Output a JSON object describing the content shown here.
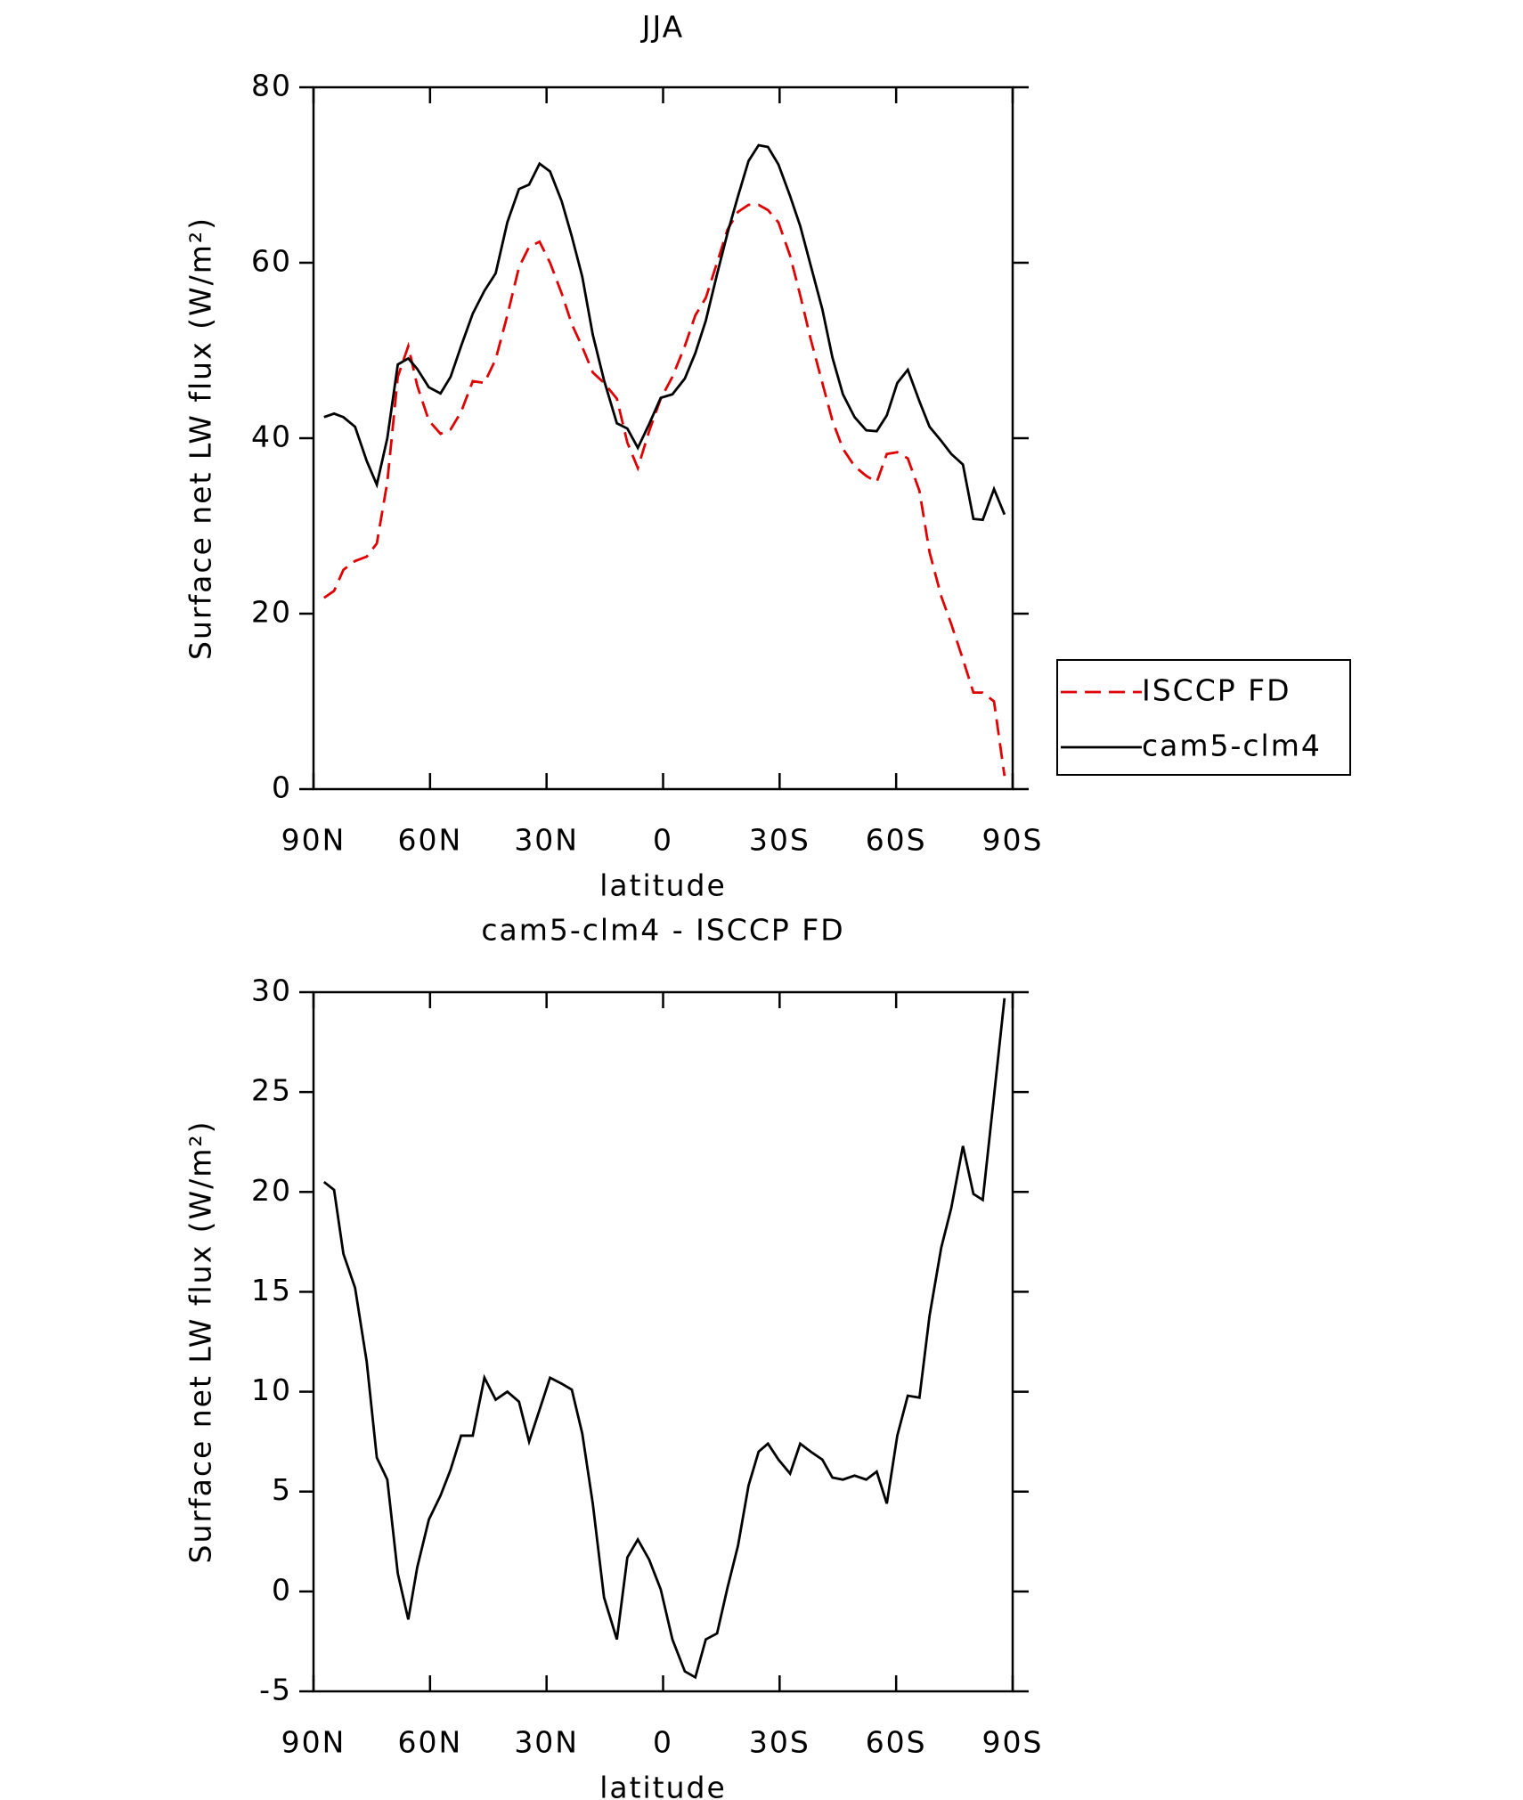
{
  "chart_data": [
    {
      "type": "line",
      "title": "JJA",
      "x_label": "latitude",
      "y_label": "Surface net LW flux (W/m²)",
      "xlim": [
        90,
        -90
      ],
      "xticks": [
        {
          "value": 90,
          "label": "90N"
        },
        {
          "value": 60,
          "label": "60N"
        },
        {
          "value": 30,
          "label": "30N"
        },
        0,
        {
          "value": -30,
          "label": "30S"
        },
        {
          "value": -60,
          "label": "60S"
        },
        {
          "value": -90,
          "label": "90S"
        }
      ],
      "ylim": [
        0,
        80
      ],
      "yticks": [
        0,
        20,
        40,
        60,
        80
      ],
      "legend": "right",
      "x": [
        87.3,
        84.7,
        82.3,
        79.3,
        76.3,
        73.7,
        71.0,
        68.3,
        65.6,
        63.3,
        60.3,
        57.3,
        54.7,
        52.0,
        49.0,
        46.0,
        43.1,
        40.1,
        37.1,
        34.5,
        31.8,
        29.1,
        26.1,
        23.5,
        20.8,
        18.1,
        15.2,
        11.9,
        9.2,
        6.5,
        3.6,
        0.6,
        -2.4,
        -5.6,
        -8.3,
        -11.0,
        -13.9,
        -16.6,
        -19.3,
        -22.0,
        -24.6,
        -27.0,
        -29.7,
        -32.7,
        -35.3,
        -38.0,
        -41.0,
        -43.6,
        -46.3,
        -49.3,
        -52.3,
        -55.0,
        -57.6,
        -60.3,
        -63.0,
        -66.0,
        -68.6,
        -71.6,
        -74.2,
        -77.2,
        -79.9,
        -82.3,
        -85.2,
        -87.9
      ],
      "series": [
        {
          "name": "ISCCP FD",
          "color": "#e00000",
          "dash": true,
          "values": [
            21.8,
            22.6,
            25,
            26,
            26.5,
            28,
            35,
            47,
            50.5,
            46,
            42,
            40.5,
            41,
            43,
            46.5,
            46.3,
            49,
            54,
            59.5,
            61.8,
            62.4,
            60,
            56.5,
            53,
            50.4,
            47.5,
            46.3,
            44.5,
            39.5,
            36.6,
            40.8,
            44.5,
            47,
            50.5,
            54,
            56,
            60,
            63.8,
            65.8,
            66.6,
            66.6,
            66,
            64.6,
            60.8,
            56.3,
            51.3,
            46.3,
            42,
            38.8,
            36.8,
            35.7,
            35,
            38.2,
            38.4,
            37.7,
            34,
            27,
            22,
            18.8,
            14.8,
            11,
            11,
            10,
            1.5
          ]
        },
        {
          "name": "cam5-clm4",
          "color": "#000000",
          "dash": false,
          "values": [
            42.4,
            42.8,
            42.4,
            41.3,
            37.4,
            34.7,
            40,
            48.4,
            49.1,
            47.9,
            45.8,
            45.1,
            47,
            50.5,
            54.2,
            56.8,
            58.8,
            64.6,
            68.4,
            68.9,
            71.3,
            70.4,
            67,
            63,
            58.4,
            51.8,
            46.6,
            41.7,
            41.1,
            38.9,
            41.6,
            44.6,
            45,
            46.8,
            49.7,
            53.4,
            58.7,
            63.4,
            67.6,
            71.6,
            73.4,
            73.2,
            71.2,
            67.6,
            64.2,
            59.7,
            54.7,
            49.2,
            45,
            42.4,
            40.9,
            40.8,
            42.6,
            46.3,
            47.8,
            44.2,
            41.3,
            39.7,
            38.2,
            37,
            30.8,
            30.7,
            34.2,
            31.3
          ]
        }
      ]
    },
    {
      "type": "line",
      "title": "cam5-clm4 - ISCCP FD",
      "x_label": "latitude",
      "y_label": "Surface net LW flux (W/m²)",
      "xlim": [
        90,
        -90
      ],
      "xticks": [
        {
          "value": 90,
          "label": "90N"
        },
        {
          "value": 60,
          "label": "60N"
        },
        {
          "value": 30,
          "label": "30N"
        },
        0,
        {
          "value": -30,
          "label": "30S"
        },
        {
          "value": -60,
          "label": "60S"
        },
        {
          "value": -90,
          "label": "90S"
        }
      ],
      "ylim": [
        -5,
        30
      ],
      "yticks": [
        -5,
        0,
        5,
        10,
        15,
        20,
        25,
        30
      ],
      "x": [
        87.3,
        84.7,
        82.3,
        79.3,
        76.3,
        73.7,
        71.0,
        68.3,
        65.6,
        63.3,
        60.3,
        57.3,
        54.7,
        52.0,
        49.0,
        46.0,
        43.1,
        40.1,
        37.1,
        34.5,
        31.8,
        29.1,
        26.1,
        23.5,
        20.8,
        18.1,
        15.2,
        11.9,
        9.2,
        6.5,
        3.6,
        0.6,
        -2.4,
        -5.6,
        -8.3,
        -11.0,
        -13.9,
        -16.6,
        -19.3,
        -22.0,
        -24.6,
        -27.0,
        -29.7,
        -32.7,
        -35.3,
        -38.0,
        -41.0,
        -43.6,
        -46.3,
        -49.3,
        -52.3,
        -55.0,
        -57.6,
        -60.3,
        -63.0,
        -66.0,
        -68.6,
        -71.6,
        -74.2,
        -77.2,
        -79.9,
        -82.3,
        -85.2,
        -87.9
      ],
      "color": "#000000",
      "values": [
        20.5,
        20.1,
        16.9,
        15.2,
        11.5,
        6.7,
        5.6,
        0.9,
        -1.4,
        1.2,
        3.6,
        4.8,
        6.1,
        7.8,
        7.8,
        10.7,
        9.6,
        10.0,
        9.5,
        7.5,
        9.1,
        10.7,
        10.4,
        10.1,
        7.9,
        4.4,
        -0.3,
        -2.4,
        1.7,
        2.6,
        1.6,
        0.1,
        -2.4,
        -4.0,
        -4.3,
        -2.4,
        -2.1,
        0.2,
        2.3,
        5.3,
        7.0,
        7.4,
        6.6,
        5.9,
        7.4,
        7.0,
        6.6,
        5.7,
        5.6,
        5.8,
        5.6,
        6.0,
        4.4,
        7.8,
        9.8,
        9.7,
        13.8,
        17.2,
        19.2,
        22.3,
        19.9,
        19.6,
        24.8,
        29.7
      ]
    }
  ]
}
